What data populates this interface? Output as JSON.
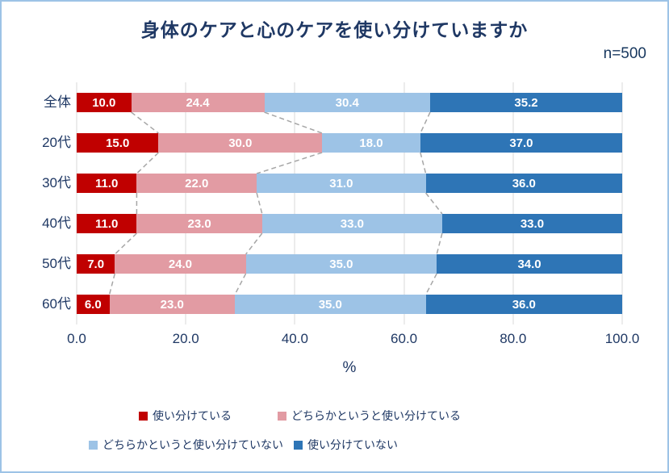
{
  "title": "身体のケアと心のケアを使い分けていますか",
  "sample_label": "n=500",
  "colors": {
    "title_text": "#1F3864",
    "axis_text": "#1F3864",
    "gridline": "#D9D9D9",
    "connector": "#A6A6A6",
    "frame_border": "#9DC3E6",
    "bar_value_text": "#FFFFFF"
  },
  "chart_data": {
    "type": "bar",
    "orientation": "horizontal-stacked",
    "title": "身体のケアと心のケアを使い分けていますか",
    "categories": [
      "全体",
      "20代",
      "30代",
      "40代",
      "50代",
      "60代"
    ],
    "series": [
      {
        "name": "使い分けている",
        "color": "#C00000",
        "values": [
          10.0,
          15.0,
          11.0,
          11.0,
          7.0,
          6.0
        ]
      },
      {
        "name": "どちらかというと使い分けている",
        "color": "#E29BA3",
        "values": [
          24.4,
          30.0,
          22.0,
          23.0,
          24.0,
          23.0
        ]
      },
      {
        "name": "どちらかというと使い分けていない",
        "color": "#9DC3E6",
        "values": [
          30.4,
          18.0,
          31.0,
          33.0,
          35.0,
          35.0
        ]
      },
      {
        "name": "使い分けていない",
        "color": "#2E75B6",
        "values": [
          35.2,
          37.0,
          36.0,
          33.0,
          34.0,
          36.0
        ]
      }
    ],
    "x_ticks": [
      "0.0",
      "20.0",
      "40.0",
      "60.0",
      "80.0",
      "100.0"
    ],
    "xlabel": "%",
    "xlim": [
      0,
      100
    ],
    "grid": true,
    "value_label_format": "one-decimal",
    "legend_position": "bottom",
    "legend_rows": [
      [
        0,
        1
      ],
      [
        2,
        3
      ]
    ]
  }
}
